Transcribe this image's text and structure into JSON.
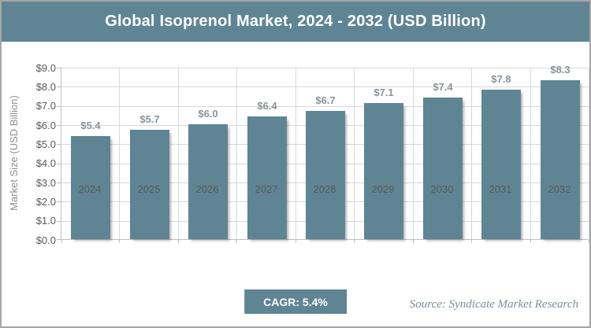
{
  "title_bar": {
    "title": "Global Isoprenol Market, 2024 - 2032 (USD Billion)"
  },
  "chart_data": {
    "type": "bar",
    "title": "Global Isoprenol Market, 2024 - 2032 (USD Billion)",
    "categories": [
      "2024",
      "2025",
      "2026",
      "2027",
      "2028",
      "2029",
      "2030",
      "2031",
      "2032"
    ],
    "values": [
      5.4,
      5.7,
      6.0,
      6.4,
      6.7,
      7.1,
      7.4,
      7.8,
      8.3
    ],
    "value_labels": [
      "$5.4",
      "$5.7",
      "$6.0",
      "$6.4",
      "$6.7",
      "$7.1",
      "$7.4",
      "$7.8",
      "$8.3"
    ],
    "xlabel": "",
    "ylabel": "Market Size (USD Billion)",
    "ylim": [
      0,
      9
    ],
    "ytick_step": 1,
    "ytick_labels": [
      "$0.0",
      "$1.0",
      "$2.0",
      "$3.0",
      "$4.0",
      "$5.0",
      "$6.0",
      "$7.0",
      "$8.0",
      "$9.0"
    ],
    "grid": true,
    "legend": "none",
    "bar_color": "#5F8595"
  },
  "footer": {
    "cagr_label": "CAGR: 5.4%",
    "source": "Source: Syndicate Market Research"
  },
  "colors": {
    "accent": "#5F8595",
    "title_text": "#FFFFFF",
    "gridline": "#D9D9D9",
    "axis_line": "#BFBFBF",
    "tick_label": "#595959",
    "value_label": "#8A939B",
    "axis_title": "#8F8F8F",
    "source_text": "#7E8E96",
    "frame_border": "#A6A6A6",
    "background": "#FFFFFF"
  }
}
